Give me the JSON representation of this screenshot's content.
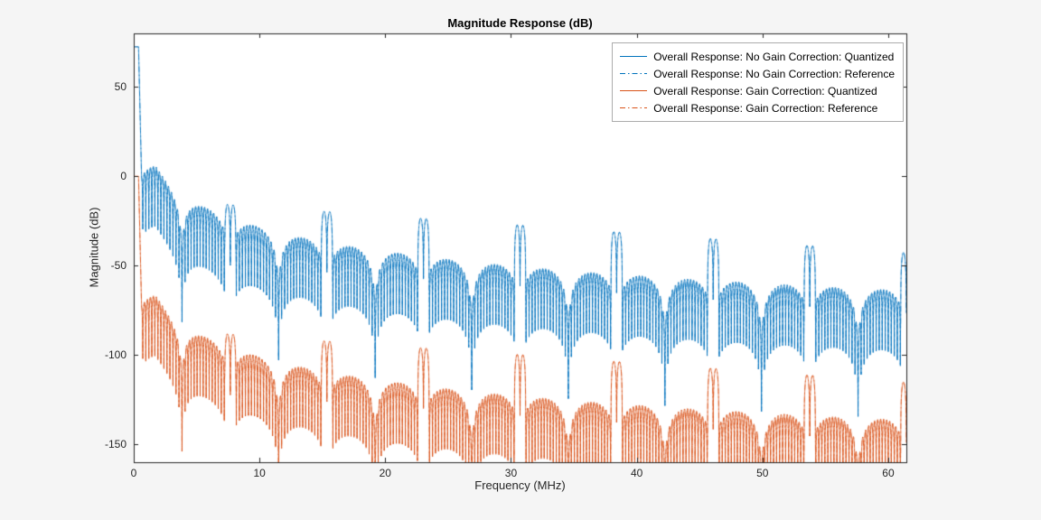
{
  "figure": {
    "title": "Magnitude Response (dB)"
  },
  "axes": {
    "xlabel": "Frequency (MHz)",
    "ylabel": "Magnitude (dB)",
    "x_ticks": [
      0,
      10,
      20,
      30,
      40,
      50,
      60
    ],
    "y_ticks": [
      50,
      0,
      -50,
      -100,
      -150
    ]
  },
  "colors": {
    "blue": "#0072BD",
    "orange": "#D95319",
    "axis": "#262626",
    "plot_background": "#FFFFFF",
    "figure_background": "#F5F5F5"
  },
  "chart_data": {
    "type": "line",
    "title": "Magnitude Response (dB)",
    "xlabel": "Frequency (MHz)",
    "ylabel": "Magnitude (dB)",
    "x_range": [
      0,
      61.44
    ],
    "y_range": [
      -160,
      80
    ],
    "grid": false,
    "legend_position": "top-right-inside",
    "series": [
      {
        "name": "Overall Response: No Gain Correction: Quantized",
        "color": "#0072BD",
        "line_style": "solid",
        "dash": [],
        "offset_db": 0
      },
      {
        "name": "Overall Response: No Gain Correction: Reference",
        "color": "#0072BD",
        "line_style": "dash-dot",
        "dash": [
          6,
          3,
          1.5,
          3
        ],
        "offset_db": 0
      },
      {
        "name": "Overall Response: Gain Correction: Quantized",
        "color": "#D95319",
        "line_style": "solid",
        "dash": [],
        "offset_db": -72.5
      },
      {
        "name": "Overall Response: Gain Correction: Reference",
        "color": "#D95319",
        "line_style": "dash-dot",
        "dash": [
          6,
          3,
          1.5,
          3
        ],
        "offset_db": -72.5
      }
    ],
    "key_features": {
      "dc_gain_db_no_gain_correction": 72.5,
      "dc_gain_db_gain_correction": 0,
      "gain_correction_offset_db": -72.5,
      "passband_edge_mhz": 0.38,
      "image_spike_frequencies_mhz": [
        7.68,
        15.36,
        23.04,
        30.72,
        38.4,
        46.08,
        53.76,
        61.44
      ],
      "image_spike_peak_db_no_gain_correction": [
        -15.8,
        -19.7,
        -23.5,
        -27.4,
        -31.2,
        -35.0,
        -38.9,
        -42.7
      ],
      "sidelobe_hump_frequencies_mhz": [
        1.92,
        5.76,
        9.6,
        13.44,
        17.28,
        21.12,
        24.96,
        28.8,
        32.64,
        36.48,
        40.32,
        44.16,
        48.0,
        51.84,
        55.68,
        59.52
      ],
      "sidelobe_hump_peak_db_no_gain_correction": [
        3.8,
        -17.7,
        -27.7,
        -34.2,
        -39.2,
        -43.1,
        -46.3,
        -49.1,
        -51.6,
        -53.7,
        -55.7,
        -57.5,
        -59.1,
        -60.6,
        -62.0,
        -63.3
      ],
      "deep_null_spacing_mhz": 3.84,
      "ripple_null_spacing_mhz": 0.24
    },
    "model": {
      "freq_step_mhz": 0.008,
      "passband_edge_mhz": 0.38,
      "passband_gain_db": 72.5,
      "transition_slope_db_per_mhz": 300,
      "envelope_cap_db": 6,
      "envelope_ref_db": 3,
      "envelope_ref_freq_mhz": 2,
      "envelope_slope_db_per_decade": 45,
      "envelope_min_freq_mhz": 0.5,
      "arch_period_mhz": 3.84,
      "arch_floor": 0.013,
      "tooth_period_mhz": 0.24,
      "tooth_floor": 0.02,
      "image_period_mhz": 7.68,
      "image_halfwidth_mhz": 0.45,
      "image_peak_db": -12,
      "image_peak_slope_db_per_mhz": -0.5,
      "image_floor": 0.02
    }
  }
}
